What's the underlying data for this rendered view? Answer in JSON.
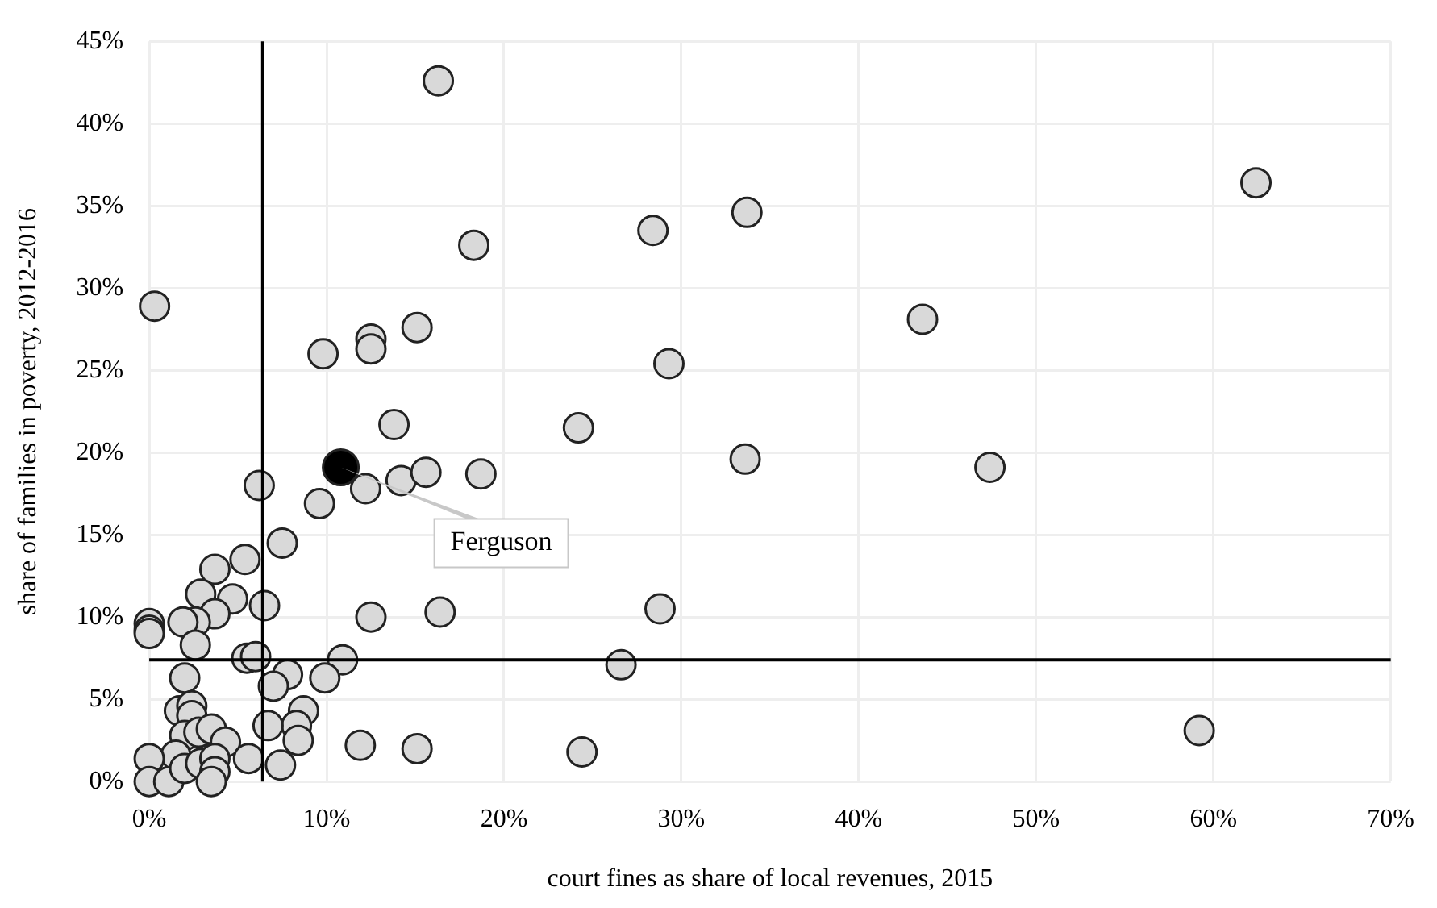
{
  "chart_data": {
    "type": "scatter",
    "xlabel": "court fines as share of local revenues, 2015",
    "ylabel": "share of families in poverty, 2012-2016",
    "marker": "circle",
    "grid": true,
    "xlim": [
      0,
      70
    ],
    "ylim": [
      0,
      45
    ],
    "xticks": [
      {
        "value": 0,
        "label": "0%"
      },
      {
        "value": 10,
        "label": "10%"
      },
      {
        "value": 20,
        "label": "20%"
      },
      {
        "value": 30,
        "label": "30%"
      },
      {
        "value": 40,
        "label": "40%"
      },
      {
        "value": 50,
        "label": "50%"
      },
      {
        "value": 60,
        "label": "60%"
      },
      {
        "value": 70,
        "label": "70%"
      }
    ],
    "yticks": [
      {
        "value": 0,
        "label": "0%"
      },
      {
        "value": 5,
        "label": "5%"
      },
      {
        "value": 10,
        "label": "10%"
      },
      {
        "value": 15,
        "label": "15%"
      },
      {
        "value": 20,
        "label": "20%"
      },
      {
        "value": 25,
        "label": "25%"
      },
      {
        "value": 30,
        "label": "30%"
      },
      {
        "value": 35,
        "label": "35%"
      },
      {
        "value": 40,
        "label": "40%"
      },
      {
        "value": 45,
        "label": "45%"
      }
    ],
    "ref_lines": [
      {
        "axis": "x",
        "value": 6.4,
        "color": "#000000"
      },
      {
        "axis": "y",
        "value": 7.4,
        "color": "#000000"
      }
    ],
    "series": [
      {
        "color": "#d9d9d9",
        "x": [
          16.3,
          62.4,
          43.6,
          47.4,
          59.2,
          18.3,
          28.4,
          33.7,
          9.8,
          12.5,
          12.5,
          15.1,
          29.3,
          13.8,
          24.2,
          33.6,
          14.2,
          15.6,
          18.7,
          0.3,
          6.2,
          9.6,
          12.2,
          7.5,
          5.4,
          3.7,
          2.9,
          4.7,
          6.5,
          3.7,
          2.6,
          1.9,
          0,
          0,
          0,
          2.6,
          12.5,
          16.4,
          28.8,
          26.6,
          15.1,
          24.4,
          11.9,
          5.5,
          6.0,
          10.9,
          7.8,
          9.9,
          7.0,
          2.0,
          8.7,
          8.3,
          8.4,
          6.7,
          1.7,
          2.4,
          2.4,
          2.0,
          2.8,
          3.5,
          4.3,
          1.5,
          0,
          0,
          1.1,
          2.0,
          2.9,
          3.7,
          3.7,
          3.5,
          5.6,
          7.4
        ],
        "values": [
          42.6,
          36.4,
          28.1,
          19.1,
          3.1,
          32.6,
          33.5,
          34.6,
          26.0,
          26.9,
          26.3,
          27.6,
          25.4,
          21.7,
          21.5,
          19.6,
          18.3,
          18.8,
          18.7,
          28.9,
          18.0,
          16.9,
          17.8,
          14.5,
          13.5,
          12.9,
          11.4,
          11.1,
          10.7,
          10.2,
          9.7,
          9.7,
          9.6,
          9.2,
          9.0,
          8.3,
          10.0,
          10.3,
          10.5,
          7.1,
          2.0,
          1.8,
          2.2,
          7.5,
          7.6,
          7.4,
          6.5,
          6.3,
          5.8,
          6.3,
          4.3,
          3.4,
          2.5,
          3.4,
          4.3,
          4.6,
          4.0,
          2.8,
          3.0,
          3.2,
          2.4,
          1.6,
          1.4,
          0,
          0,
          0.8,
          1.1,
          1.4,
          0.6,
          0,
          1.4,
          1.0
        ]
      },
      {
        "name": "Ferguson",
        "color": "#000000",
        "x": [
          10.8
        ],
        "values": [
          19.1
        ]
      }
    ]
  }
}
